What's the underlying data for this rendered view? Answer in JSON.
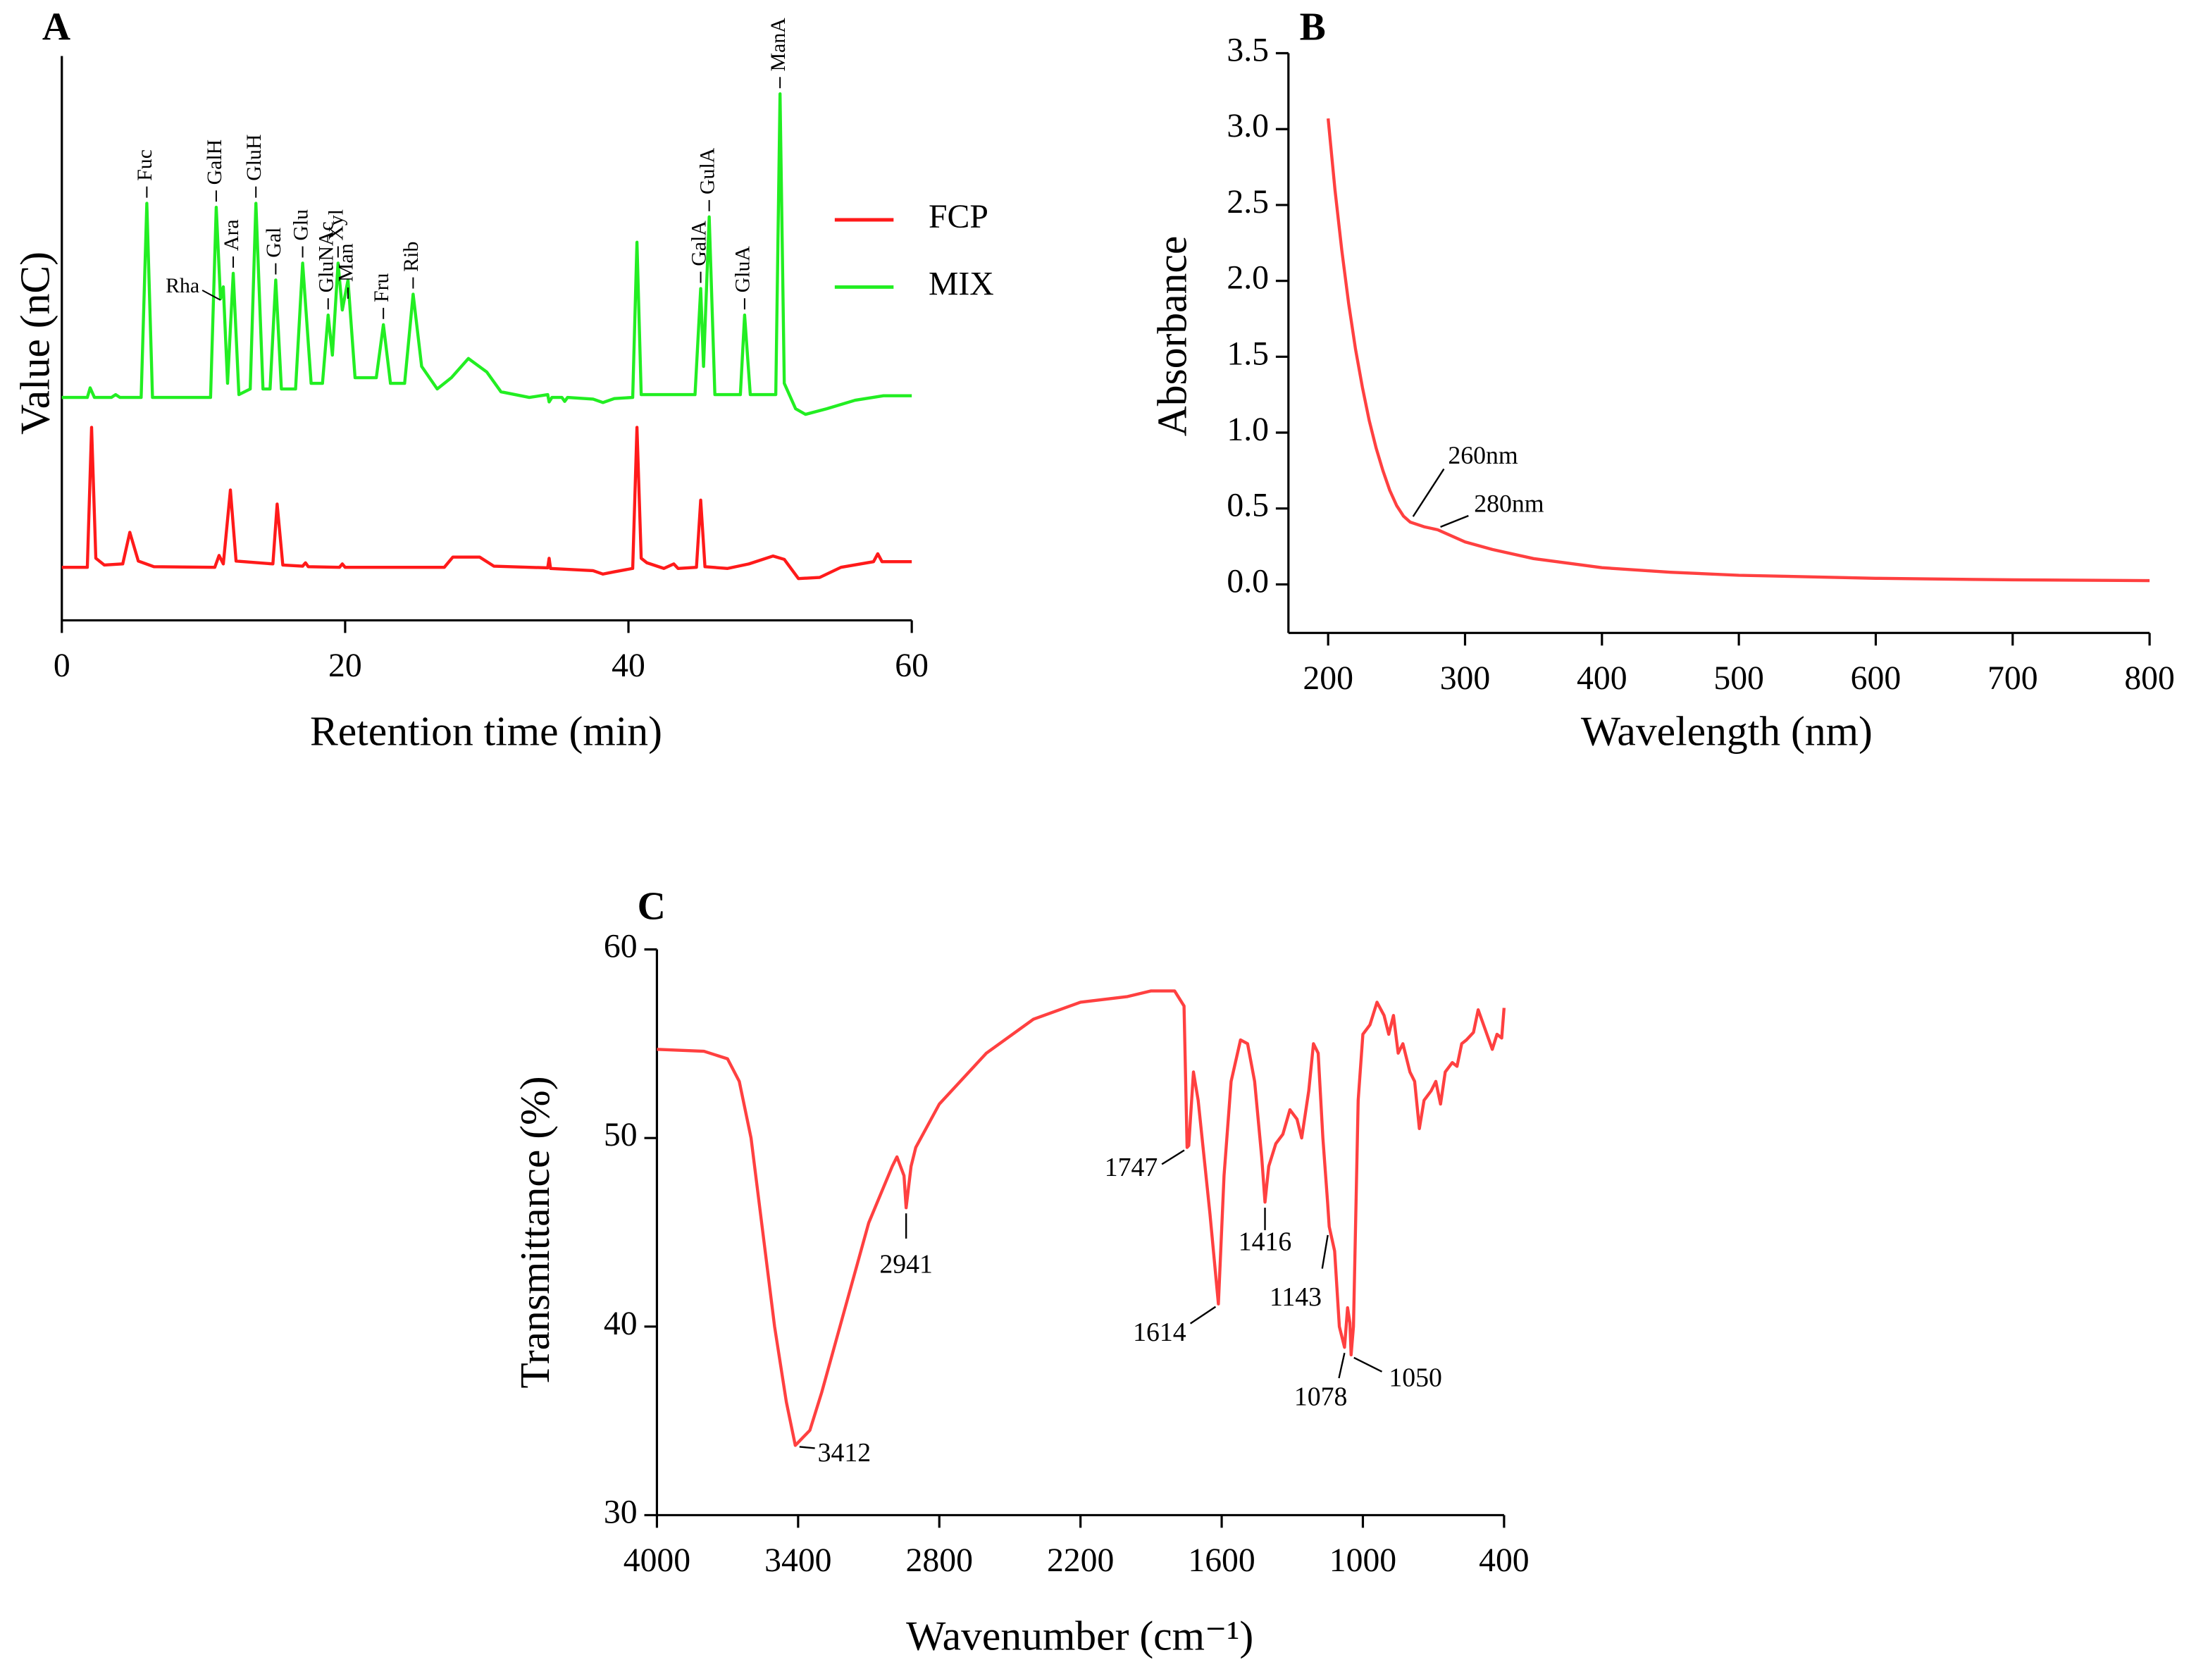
{
  "chart_data": [
    {
      "type": "line",
      "panel": "A",
      "xlabel": "Retention time (min)",
      "ylabel": "Value (nC)",
      "xlim": [
        0,
        60
      ],
      "ylim": [
        0,
        100
      ],
      "xticks": [
        0,
        20,
        40,
        60
      ],
      "legend": "upper right",
      "grid": false,
      "series": [
        {
          "name": "FCP",
          "color": "#ff1a1a",
          "x": [
            0,
            1.8,
            2.1,
            2.4,
            3,
            4.3,
            4.8,
            5.4,
            6.5,
            10.8,
            11.1,
            11.4,
            11.9,
            12.3,
            14.9,
            15.2,
            15.6,
            17,
            17.2,
            17.4,
            19.6,
            19.8,
            20,
            27,
            27.6,
            29.5,
            30.5,
            34.3,
            34.4,
            34.5,
            37.5,
            38.2,
            39,
            40.3,
            40.6,
            40.9,
            41.3,
            42.5,
            43.2,
            43.5,
            44.8,
            45.1,
            45.4,
            47,
            48.5,
            50.2,
            51,
            52,
            53.5,
            55,
            57.3,
            57.6,
            57.9,
            60
          ],
          "values": [
            9.4,
            9.4,
            34.2,
            11,
            9.8,
            10,
            15.6,
            10.5,
            9.5,
            9.4,
            11.5,
            10,
            23.1,
            10.5,
            10,
            20.6,
            9.8,
            9.6,
            10.2,
            9.5,
            9.4,
            10,
            9.4,
            9.4,
            11.2,
            11.2,
            9.6,
            9.3,
            11,
            9.2,
            8.8,
            8.2,
            8.6,
            9.2,
            34.2,
            11,
            10.2,
            9.2,
            10,
            9.2,
            9.4,
            21.3,
            9.5,
            9.2,
            10,
            11.4,
            10.8,
            7.4,
            7.6,
            9.4,
            10.4,
            11.8,
            10.4,
            10.4
          ]
        },
        {
          "name": "MIX",
          "color": "#22ee22",
          "x": [
            0,
            1.8,
            2,
            2.3,
            3.5,
            3.8,
            4.1,
            5.6,
            6,
            6.4,
            10.5,
            10.9,
            11.2,
            11.4,
            11.7,
            12.1,
            12.5,
            13.3,
            13.7,
            14.2,
            14.7,
            15.1,
            15.5,
            16.5,
            17,
            17.6,
            18.4,
            18.8,
            19.1,
            19.5,
            19.8,
            20.2,
            20.7,
            22.2,
            22.7,
            23.2,
            24.2,
            24.8,
            25.4,
            26.5,
            27.5,
            28.7,
            30,
            31,
            33,
            34.3,
            34.4,
            34.6,
            35.3,
            35.5,
            35.7,
            37.5,
            38.2,
            39,
            40.3,
            40.6,
            40.9,
            44.7,
            45.1,
            45.3,
            45.7,
            46.1,
            47.9,
            48.2,
            48.6,
            50.4,
            50.7,
            51,
            51.8,
            52.5,
            54,
            56,
            58,
            60
          ],
          "values": [
            39.5,
            39.5,
            41.2,
            39.5,
            39.5,
            40,
            39.5,
            39.5,
            73.9,
            39.5,
            39.5,
            73.2,
            57,
            59.1,
            42,
            61.5,
            40,
            41,
            73.9,
            41,
            41,
            60.3,
            41,
            41,
            63.3,
            42,
            42,
            54.1,
            47,
            63.3,
            55,
            60.3,
            43,
            43,
            52.4,
            42,
            42,
            57.8,
            45,
            41,
            43,
            46.4,
            44,
            40.5,
            39.5,
            40,
            38.7,
            39.5,
            39.5,
            38.8,
            39.5,
            39.2,
            38.6,
            39.3,
            39.5,
            67,
            40,
            40,
            58.8,
            45,
            71.5,
            40,
            40,
            54.1,
            40,
            40,
            93.3,
            42,
            37.5,
            36.5,
            37.5,
            39,
            39.8,
            39.8
          ]
        }
      ],
      "annotations": [
        {
          "text": "Fuc",
          "x": 6,
          "y": 73.9
        },
        {
          "text": "GalH",
          "x": 10.9,
          "y": 73.2
        },
        {
          "text": "Rha",
          "x": 11.3,
          "y": 57,
          "orientation": "horizontal"
        },
        {
          "text": "Ara",
          "x": 12.1,
          "y": 61.5
        },
        {
          "text": "GluH",
          "x": 13.7,
          "y": 73.9
        },
        {
          "text": "Gal",
          "x": 15.1,
          "y": 60.3
        },
        {
          "text": "Glu",
          "x": 17,
          "y": 63.3
        },
        {
          "text": "GluNAc",
          "x": 18.8,
          "y": 54.1
        },
        {
          "text": "Xyl",
          "x": 19.5,
          "y": 63.3
        },
        {
          "text": "Man",
          "x": 20.2,
          "y": 56
        },
        {
          "text": "Fru",
          "x": 22.7,
          "y": 52.4
        },
        {
          "text": "Rib",
          "x": 24.8,
          "y": 57.8
        },
        {
          "text": "GalA",
          "x": 45.1,
          "y": 58.8
        },
        {
          "text": "GulA",
          "x": 45.7,
          "y": 71.5
        },
        {
          "text": "GluA",
          "x": 48.2,
          "y": 54.1
        },
        {
          "text": "ManA",
          "x": 50.7,
          "y": 93.3
        }
      ]
    },
    {
      "type": "line",
      "panel": "B",
      "xlabel": "Wavelength (nm)",
      "ylabel": "Absorbance",
      "xlim": [
        171,
        800
      ],
      "ylim": [
        -0.32,
        3.5
      ],
      "grid": false,
      "xticks": [
        200,
        300,
        400,
        500,
        600,
        700,
        800
      ],
      "yticks": [
        {
          "value": 0,
          "label": "0.0"
        },
        0.5,
        {
          "value": 1,
          "label": "1.0"
        },
        1.5,
        {
          "value": 2,
          "label": "2.0"
        },
        2.5,
        {
          "value": 3,
          "label": "3.0"
        },
        3.5
      ],
      "color": "#ff4040",
      "x": [
        200,
        205,
        210,
        215,
        220,
        225,
        230,
        235,
        240,
        245,
        250,
        255,
        260,
        270,
        280,
        290,
        300,
        320,
        350,
        400,
        450,
        500,
        600,
        700,
        800
      ],
      "values": [
        3.07,
        2.6,
        2.2,
        1.85,
        1.55,
        1.3,
        1.08,
        0.9,
        0.75,
        0.62,
        0.52,
        0.45,
        0.41,
        0.38,
        0.36,
        0.32,
        0.28,
        0.23,
        0.17,
        0.11,
        0.08,
        0.06,
        0.04,
        0.03,
        0.025
      ],
      "annotations": [
        {
          "text": "260nm",
          "x": 260,
          "y": 0.41
        },
        {
          "text": "280nm",
          "x": 280,
          "y": 0.36
        }
      ]
    },
    {
      "type": "line",
      "panel": "C",
      "xlabel": "Wavenumber (cm⁻¹)",
      "ylabel": "Transmittance (%)",
      "xlim": [
        4000,
        400
      ],
      "ylim": [
        30,
        60
      ],
      "grid": false,
      "xticks": [
        4000,
        3400,
        2800,
        2200,
        1600,
        1000,
        400
      ],
      "yticks": [
        30,
        40,
        50,
        60
      ],
      "color": "#ff4040",
      "x": [
        4000,
        3800,
        3700,
        3650,
        3600,
        3550,
        3500,
        3450,
        3412,
        3350,
        3300,
        3200,
        3100,
        3000,
        2980,
        2950,
        2941,
        2920,
        2900,
        2800,
        2600,
        2400,
        2200,
        2000,
        1900,
        1800,
        1760,
        1747,
        1740,
        1720,
        1700,
        1650,
        1614,
        1590,
        1560,
        1520,
        1490,
        1460,
        1430,
        1416,
        1400,
        1370,
        1340,
        1310,
        1280,
        1260,
        1230,
        1210,
        1190,
        1170,
        1150,
        1143,
        1120,
        1100,
        1078,
        1065,
        1055,
        1050,
        1040,
        1020,
        1000,
        970,
        940,
        910,
        890,
        870,
        850,
        830,
        800,
        780,
        760,
        740,
        710,
        690,
        670,
        650,
        620,
        600,
        580,
        560,
        530,
        510,
        450,
        430,
        410,
        400
      ],
      "values": [
        54.7,
        54.6,
        54.2,
        53,
        50,
        45,
        40,
        36,
        33.7,
        34.5,
        36.5,
        41,
        45.5,
        48.5,
        49,
        48,
        46.3,
        48.5,
        49.5,
        51.8,
        54.5,
        56.3,
        57.2,
        57.5,
        57.8,
        57.8,
        57,
        49.5,
        49.6,
        53.5,
        52,
        46,
        41.2,
        48,
        53,
        55.2,
        55,
        53,
        49,
        46.6,
        48.5,
        49.7,
        50.2,
        51.5,
        51,
        50,
        52.5,
        55,
        54.5,
        50,
        46.6,
        45.3,
        44,
        40,
        38.9,
        41,
        40.2,
        38.5,
        40,
        52,
        55.5,
        56,
        57.2,
        56.5,
        55.5,
        56.5,
        54.5,
        55,
        53.5,
        53,
        50.5,
        52,
        52.5,
        53,
        51.8,
        53.5,
        54,
        53.8,
        55,
        55.2,
        55.6,
        56.8,
        54.7,
        55.5,
        55.3,
        56.9
      ],
      "annotations": [
        {
          "text": "3412",
          "x": 3412,
          "y": 33.7
        },
        {
          "text": "2941",
          "x": 2941,
          "y": 46.3
        },
        {
          "text": "1747",
          "x": 1747,
          "y": 49.5
        },
        {
          "text": "1614",
          "x": 1614,
          "y": 41.2
        },
        {
          "text": "1416",
          "x": 1416,
          "y": 46.6
        },
        {
          "text": "1143",
          "x": 1143,
          "y": 45.3
        },
        {
          "text": "1078",
          "x": 1078,
          "y": 38.9
        },
        {
          "text": "1050",
          "x": 1050,
          "y": 38.5
        }
      ]
    }
  ]
}
